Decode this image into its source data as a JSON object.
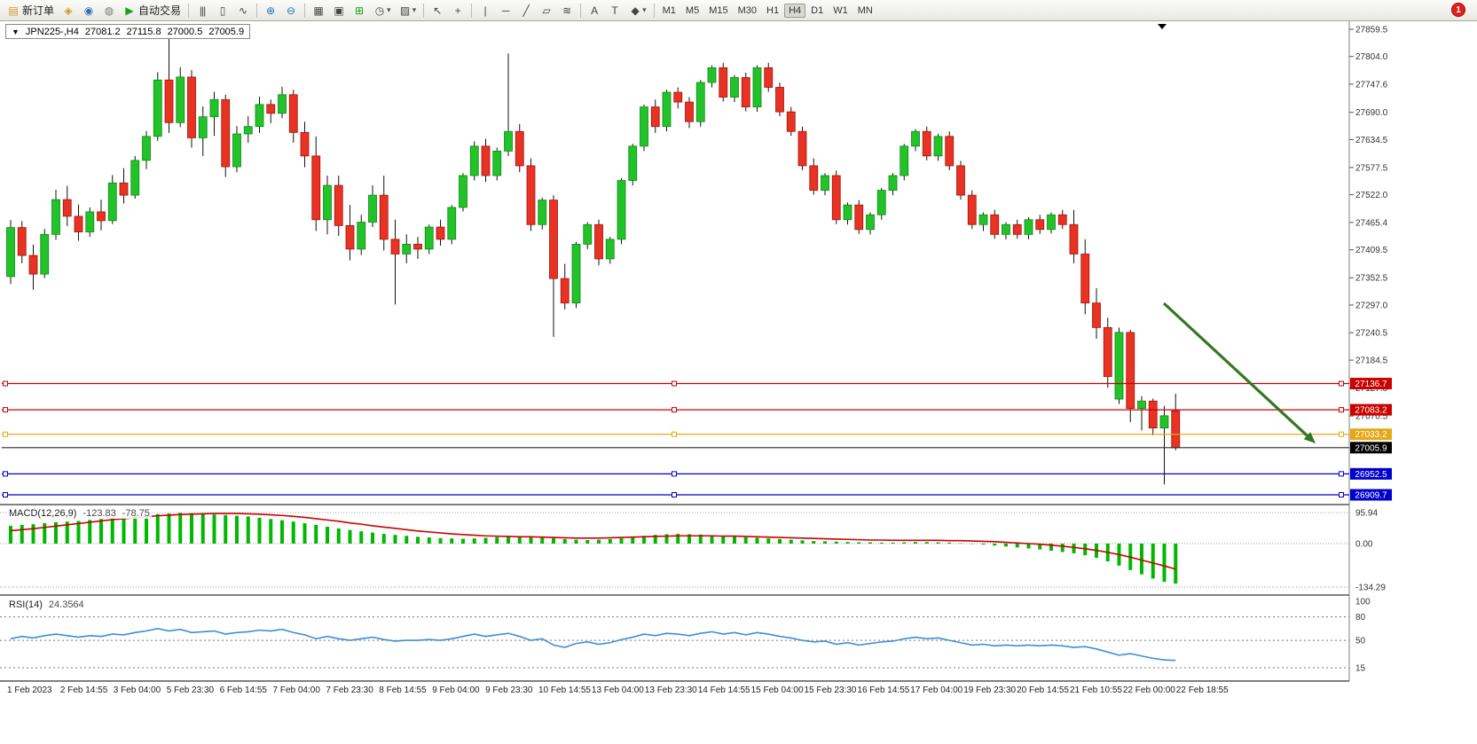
{
  "toolbar": {
    "new_order_label": "新订单",
    "auto_trading_label": "自动交易",
    "badge_count": "1",
    "timeframes": [
      "M1",
      "M5",
      "M15",
      "M30",
      "H1",
      "H4",
      "D1",
      "W1",
      "MN"
    ],
    "active_timeframe": "H4",
    "icons": {
      "new_order": "▤",
      "symbols": "◈",
      "profiles": "◉",
      "data_window": "◍",
      "play": "▶",
      "bars_chart": "|||",
      "candles_chart": "▯",
      "line_chart": "∿",
      "zoom_in": "⊕",
      "zoom_out": "⊖",
      "tile_windows": "▦",
      "cascade_windows": "▣",
      "new_chart": "⊞",
      "periods": "◷",
      "templates": "▨",
      "cursor": "↖",
      "crosshair": "+",
      "vertical_line": "|",
      "horizontal_line": "─",
      "trendline": "╱",
      "channel": "▱",
      "fibonacci": "≋",
      "text": "A",
      "text_label": "T",
      "shapes": "◆",
      "dropdown": "▾"
    }
  },
  "chart_data": {
    "type": "candlestick",
    "symbol_title": "JPN225-,H4",
    "ohlc_display": {
      "open": "27081.2",
      "high": "27115.8",
      "low": "27000.5",
      "close": "27005.9"
    },
    "y_anchor": {
      "price_top": 27859.5,
      "price_bottom": 26909.7
    },
    "y_ticks": [
      27859.5,
      27804.0,
      27747.6,
      27690.0,
      27634.5,
      27577.5,
      27522.0,
      27465.4,
      27409.5,
      27352.5,
      27297.0,
      27240.5,
      27184.5,
      27127.8,
      27070.5
    ],
    "hlines": [
      {
        "price": 27136.7,
        "label": "27136.7",
        "color": "#cc0000"
      },
      {
        "price": 27083.2,
        "label": "27083.2",
        "color": "#cc0000"
      },
      {
        "price": 27033.2,
        "label": "27033.2",
        "color": "#e6a817"
      },
      {
        "price": 27005.9,
        "label": "27005.9",
        "color": "#2a2a2a",
        "style": "current"
      },
      {
        "price": 26952.5,
        "label": "26952.5",
        "color": "#0000cc"
      },
      {
        "price": 26909.7,
        "label": "26909.7",
        "color": "#0000cc"
      }
    ],
    "arrow": {
      "color": "#337722"
    },
    "candles": [
      [
        27355,
        27470,
        27340,
        27455
      ],
      [
        27455,
        27468,
        27382,
        27398
      ],
      [
        27398,
        27420,
        27328,
        27360
      ],
      [
        27360,
        27452,
        27352,
        27441
      ],
      [
        27441,
        27532,
        27430,
        27512
      ],
      [
        27512,
        27540,
        27458,
        27478
      ],
      [
        27478,
        27502,
        27428,
        27446
      ],
      [
        27446,
        27496,
        27436,
        27487
      ],
      [
        27487,
        27512,
        27449,
        27469
      ],
      [
        27469,
        27562,
        27462,
        27546
      ],
      [
        27546,
        27576,
        27504,
        27521
      ],
      [
        27521,
        27601,
        27514,
        27592
      ],
      [
        27592,
        27652,
        27574,
        27641
      ],
      [
        27641,
        27772,
        27632,
        27756
      ],
      [
        27756,
        27845,
        27648,
        27669
      ],
      [
        27669,
        27782,
        27660,
        27762
      ],
      [
        27762,
        27776,
        27618,
        27638
      ],
      [
        27638,
        27702,
        27601,
        27681
      ],
      [
        27681,
        27732,
        27642,
        27716
      ],
      [
        27716,
        27726,
        27558,
        27579
      ],
      [
        27579,
        27662,
        27568,
        27646
      ],
      [
        27646,
        27682,
        27628,
        27661
      ],
      [
        27661,
        27722,
        27648,
        27706
      ],
      [
        27706,
        27716,
        27668,
        27688
      ],
      [
        27688,
        27742,
        27678,
        27726
      ],
      [
        27726,
        27736,
        27628,
        27649
      ],
      [
        27649,
        27671,
        27578,
        27601
      ],
      [
        27601,
        27641,
        27448,
        27471
      ],
      [
        27471,
        27561,
        27441,
        27541
      ],
      [
        27541,
        27561,
        27438,
        27459
      ],
      [
        27459,
        27501,
        27388,
        27411
      ],
      [
        27411,
        27481,
        27399,
        27466
      ],
      [
        27466,
        27541,
        27456,
        27521
      ],
      [
        27521,
        27561,
        27408,
        27431
      ],
      [
        27431,
        27471,
        27298,
        27401
      ],
      [
        27401,
        27441,
        27382,
        27421
      ],
      [
        27421,
        27436,
        27391,
        27411
      ],
      [
        27411,
        27461,
        27401,
        27456
      ],
      [
        27456,
        27471,
        27418,
        27431
      ],
      [
        27431,
        27501,
        27421,
        27496
      ],
      [
        27496,
        27566,
        27488,
        27561
      ],
      [
        27561,
        27631,
        27551,
        27621
      ],
      [
        27621,
        27636,
        27548,
        27561
      ],
      [
        27561,
        27618,
        27551,
        27611
      ],
      [
        27611,
        27810,
        27601,
        27651
      ],
      [
        27651,
        27666,
        27568,
        27581
      ],
      [
        27581,
        27596,
        27448,
        27461
      ],
      [
        27461,
        27516,
        27451,
        27511
      ],
      [
        27511,
        27521,
        27232,
        27351
      ],
      [
        27351,
        27381,
        27288,
        27301
      ],
      [
        27301,
        27426,
        27291,
        27421
      ],
      [
        27421,
        27466,
        27411,
        27461
      ],
      [
        27461,
        27471,
        27378,
        27391
      ],
      [
        27391,
        27436,
        27381,
        27431
      ],
      [
        27431,
        27556,
        27421,
        27551
      ],
      [
        27551,
        27626,
        27541,
        27621
      ],
      [
        27621,
        27706,
        27611,
        27701
      ],
      [
        27701,
        27716,
        27648,
        27661
      ],
      [
        27661,
        27736,
        27651,
        27731
      ],
      [
        27731,
        27741,
        27698,
        27711
      ],
      [
        27711,
        27721,
        27658,
        27671
      ],
      [
        27671,
        27756,
        27661,
        27751
      ],
      [
        27751,
        27786,
        27741,
        27781
      ],
      [
        27781,
        27791,
        27712,
        27721
      ],
      [
        27721,
        27766,
        27711,
        27761
      ],
      [
        27761,
        27771,
        27692,
        27701
      ],
      [
        27701,
        27786,
        27691,
        27781
      ],
      [
        27781,
        27791,
        27732,
        27741
      ],
      [
        27741,
        27751,
        27682,
        27691
      ],
      [
        27691,
        27701,
        27642,
        27651
      ],
      [
        27651,
        27661,
        27572,
        27581
      ],
      [
        27581,
        27596,
        27522,
        27531
      ],
      [
        27531,
        27566,
        27521,
        27561
      ],
      [
        27561,
        27571,
        27462,
        27471
      ],
      [
        27471,
        27506,
        27461,
        27501
      ],
      [
        27501,
        27511,
        27442,
        27451
      ],
      [
        27451,
        27486,
        27441,
        27481
      ],
      [
        27481,
        27536,
        27471,
        27531
      ],
      [
        27531,
        27566,
        27521,
        27561
      ],
      [
        27561,
        27626,
        27551,
        27621
      ],
      [
        27621,
        27656,
        27611,
        27651
      ],
      [
        27651,
        27661,
        27592,
        27601
      ],
      [
        27601,
        27646,
        27591,
        27641
      ],
      [
        27641,
        27651,
        27572,
        27581
      ],
      [
        27581,
        27591,
        27512,
        27521
      ],
      [
        27521,
        27531,
        27452,
        27461
      ],
      [
        27461,
        27486,
        27448,
        27481
      ],
      [
        27481,
        27491,
        27432,
        27441
      ],
      [
        27441,
        27466,
        27431,
        27461
      ],
      [
        27461,
        27471,
        27432,
        27441
      ],
      [
        27441,
        27476,
        27431,
        27471
      ],
      [
        27471,
        27481,
        27442,
        27451
      ],
      [
        27451,
        27486,
        27443,
        27481
      ],
      [
        27481,
        27491,
        27452,
        27461
      ],
      [
        27461,
        27491,
        27382,
        27401
      ],
      [
        27401,
        27431,
        27278,
        27301
      ],
      [
        27301,
        27331,
        27228,
        27251
      ],
      [
        27251,
        27271,
        27128,
        27151
      ],
      [
        27105,
        27251,
        27095,
        27241
      ],
      [
        27241,
        27246,
        27058,
        27086
      ],
      [
        27086,
        27111,
        27041,
        27101
      ],
      [
        27101,
        27106,
        27031,
        27046
      ],
      [
        27046,
        27091,
        26931,
        27071
      ],
      [
        27081.2,
        27115.8,
        27000.5,
        27005.9
      ]
    ],
    "time_labels": [
      "1 Feb 2023",
      "2 Feb 14:55",
      "3 Feb 04:00",
      "5 Feb 23:30",
      "6 Feb 14:55",
      "7 Feb 04:00",
      "7 Feb 23:30",
      "8 Feb 14:55",
      "9 Feb 04:00",
      "9 Feb 23:30",
      "10 Feb 14:55",
      "13 Feb 04:00",
      "13 Feb 23:30",
      "14 Feb 14:55",
      "15 Feb 04:00",
      "15 Feb 23:30",
      "16 Feb 14:55",
      "17 Feb 04:00",
      "19 Feb 23:30",
      "20 Feb 14:55",
      "21 Feb 10:55",
      "22 Feb 00:00",
      "22 Feb 18:55"
    ],
    "macd": {
      "label": "MACD(12,26,9)",
      "value_main": "-123.83",
      "value_signal": "-78.75",
      "y_ticks": [
        {
          "v": 95.94,
          "label": "95.94"
        },
        {
          "v": 0,
          "label": "0.00"
        },
        {
          "v": -134.29,
          "label": "-134.29"
        }
      ],
      "hist_color": "#00b800",
      "signal_color": "#cc0000",
      "histogram": [
        55,
        58,
        60,
        63,
        66,
        68,
        70,
        73,
        76,
        80,
        83,
        86,
        88,
        91,
        93,
        95,
        94,
        92,
        90,
        88,
        86,
        84,
        80,
        76,
        72,
        68,
        63,
        58,
        52,
        47,
        42,
        38,
        34,
        30,
        27,
        24,
        21,
        19,
        17,
        16,
        15,
        16,
        18,
        20,
        22,
        23,
        22,
        20,
        17,
        14,
        12,
        11,
        12,
        14,
        17,
        20,
        24,
        27,
        29,
        30,
        29,
        28,
        26,
        24,
        22,
        20,
        18,
        16,
        14,
        12,
        10,
        8,
        7,
        6,
        5,
        4,
        4,
        3,
        3,
        4,
        5,
        5,
        4,
        3,
        1,
        -1,
        -3,
        -6,
        -9,
        -12,
        -15,
        -18,
        -22,
        -26,
        -30,
        -36,
        -44,
        -55,
        -68,
        -82,
        -95,
        -108,
        -118,
        -123.83
      ],
      "signal": [
        40,
        43,
        46,
        50,
        54,
        58,
        62,
        66,
        70,
        74,
        77,
        80,
        83,
        86,
        88,
        90,
        91,
        92,
        93,
        93,
        93,
        92,
        91,
        89,
        87,
        84,
        81,
        77,
        73,
        69,
        64,
        60,
        55,
        51,
        47,
        43,
        39,
        36,
        33,
        30,
        28,
        26,
        24,
        23,
        22,
        21,
        21,
        20,
        19,
        18,
        17,
        17,
        17,
        18,
        19,
        20,
        21,
        22,
        23,
        24,
        24,
        24,
        24,
        23,
        23,
        22,
        21,
        20,
        19,
        18,
        17,
        16,
        15,
        14,
        13,
        12,
        11,
        11,
        10,
        10,
        10,
        10,
        10,
        9,
        9,
        8,
        7,
        6,
        4,
        2,
        0,
        -2,
        -5,
        -8,
        -12,
        -16,
        -21,
        -27,
        -34,
        -42,
        -51,
        -60,
        -69,
        -78.75
      ]
    },
    "rsi": {
      "label": "RSI(14)",
      "value": "24.3564",
      "color": "#3c8fd6",
      "levels": [
        80,
        50,
        15
      ],
      "y_ticks": [
        {
          "v": 100,
          "label": "100"
        },
        {
          "v": 80,
          "label": "80"
        },
        {
          "v": 50,
          "label": "50"
        },
        {
          "v": 15,
          "label": "15"
        }
      ],
      "values": [
        52,
        55,
        53,
        56,
        58,
        56,
        54,
        56,
        55,
        58,
        57,
        60,
        62,
        65,
        62,
        64,
        60,
        61,
        62,
        58,
        60,
        61,
        63,
        62,
        64,
        60,
        57,
        52,
        55,
        52,
        50,
        52,
        54,
        51,
        49,
        50,
        50,
        51,
        50,
        52,
        55,
        58,
        55,
        57,
        59,
        55,
        50,
        52,
        44,
        41,
        46,
        48,
        45,
        47,
        51,
        54,
        58,
        56,
        59,
        58,
        56,
        59,
        61,
        58,
        60,
        57,
        60,
        58,
        55,
        53,
        50,
        48,
        49,
        45,
        47,
        44,
        46,
        48,
        49,
        52,
        54,
        52,
        53,
        50,
        47,
        44,
        45,
        43,
        44,
        43,
        44,
        43,
        44,
        43,
        41,
        42,
        39,
        35,
        31,
        33,
        30,
        27,
        25,
        24.36
      ]
    }
  }
}
